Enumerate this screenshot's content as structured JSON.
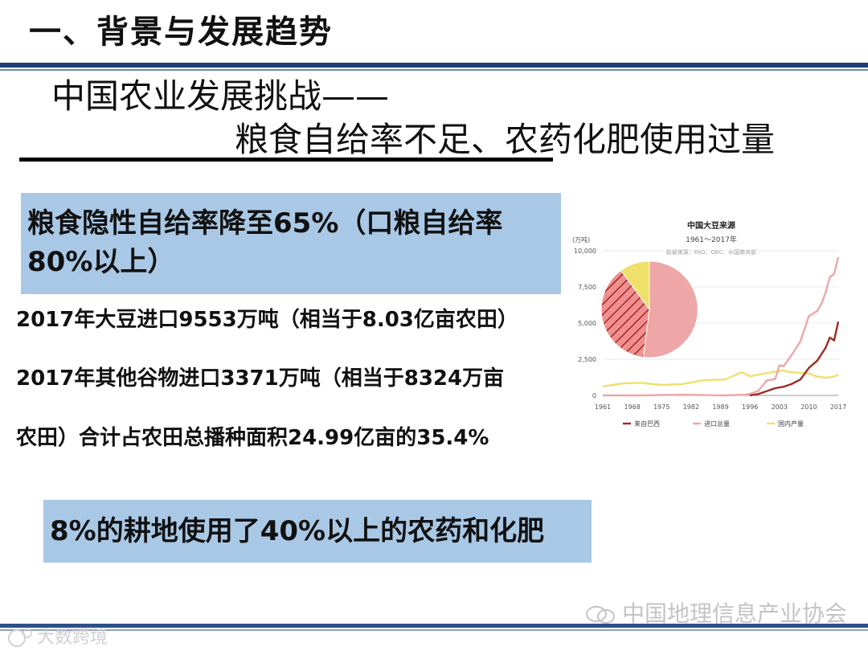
{
  "slide": {
    "section_title": "一、背景与发展趋势",
    "heading_line1": "中国农业发展挑战——",
    "heading_line2": "粮食自给率不足、农药化肥使用过量"
  },
  "highlight_box_1": {
    "text": "粮食隐性自给率降至65%（口粮自给率80%以上）"
  },
  "paragraphs": [
    "2017年大豆进口9553万吨（相当于8.03亿亩农田）",
    "2017年其他谷物进口3371万吨（相当于8324万亩",
    "农田）合计占农田总播种面积24.99亿亩的35.4%"
  ],
  "highlight_box_2": {
    "text": "8%的耕地使用了40%以上的农药和化肥"
  },
  "watermark": {
    "text": "中国地理信息产业协会",
    "corner_text": "大数跨境"
  },
  "colors": {
    "header_rule": "#1f3f77",
    "box_fill": "#a9c8e6",
    "brazil": "#9e2a22",
    "imports": "#eea6a6",
    "domestic": "#efe06a"
  },
  "chart_data": {
    "type": "line",
    "title": "中国大豆来源",
    "subtitle": "1961～2017年",
    "source": "数据来源：FAO、OEC、中国商务部",
    "ylabel": "(万吨)",
    "xlabel": "",
    "ylim": [
      0,
      10000
    ],
    "yticks": [
      "0",
      "2,500",
      "5,000",
      "7,500",
      "10,000"
    ],
    "xticks": [
      "1961",
      "1968",
      "1975",
      "1982",
      "1989",
      "1996",
      "2003",
      "2010",
      "2017"
    ],
    "xlim": [
      1961,
      2017
    ],
    "grid": true,
    "legend_position": "bottom",
    "series": [
      {
        "name": "来自巴西",
        "color": "#9e2a22",
        "x": [
          1996,
          1998,
          2000,
          2002,
          2004,
          2006,
          2008,
          2010,
          2012,
          2014,
          2015,
          2016,
          2017
        ],
        "values": [
          0,
          100,
          300,
          500,
          600,
          800,
          1100,
          1900,
          2400,
          3300,
          4000,
          3800,
          5100
        ]
      },
      {
        "name": "进口总量",
        "color": "#eea6a6",
        "x": [
          1961,
          1970,
          1980,
          1990,
          1995,
          1996,
          1998,
          2000,
          2002,
          2003,
          2004,
          2006,
          2008,
          2010,
          2012,
          2013,
          2014,
          2015,
          2016,
          2017
        ],
        "values": [
          0,
          0,
          50,
          0,
          50,
          110,
          320,
          1040,
          1130,
          2070,
          2020,
          2830,
          3740,
          5480,
          5840,
          6340,
          7140,
          8170,
          8390,
          9553
        ]
      },
      {
        "name": "国内产量",
        "color": "#efe06a",
        "x": [
          1961,
          1966,
          1970,
          1975,
          1980,
          1985,
          1990,
          1994,
          1996,
          2000,
          2004,
          2005,
          2008,
          2010,
          2012,
          2014,
          2016,
          2017
        ],
        "values": [
          620,
          840,
          870,
          720,
          790,
          1050,
          1100,
          1600,
          1320,
          1540,
          1740,
          1630,
          1550,
          1510,
          1300,
          1220,
          1300,
          1450
        ]
      }
    ],
    "pie": {
      "slices": [
        {
          "name": "进口总量",
          "value": 52,
          "color": "#eea6a6",
          "hatched": false
        },
        {
          "name": "来自巴西",
          "value": 38,
          "color": "#ef8f8f",
          "hatched": true
        },
        {
          "name": "国内产量",
          "value": 10,
          "color": "#efe06a",
          "hatched": false
        }
      ]
    }
  }
}
